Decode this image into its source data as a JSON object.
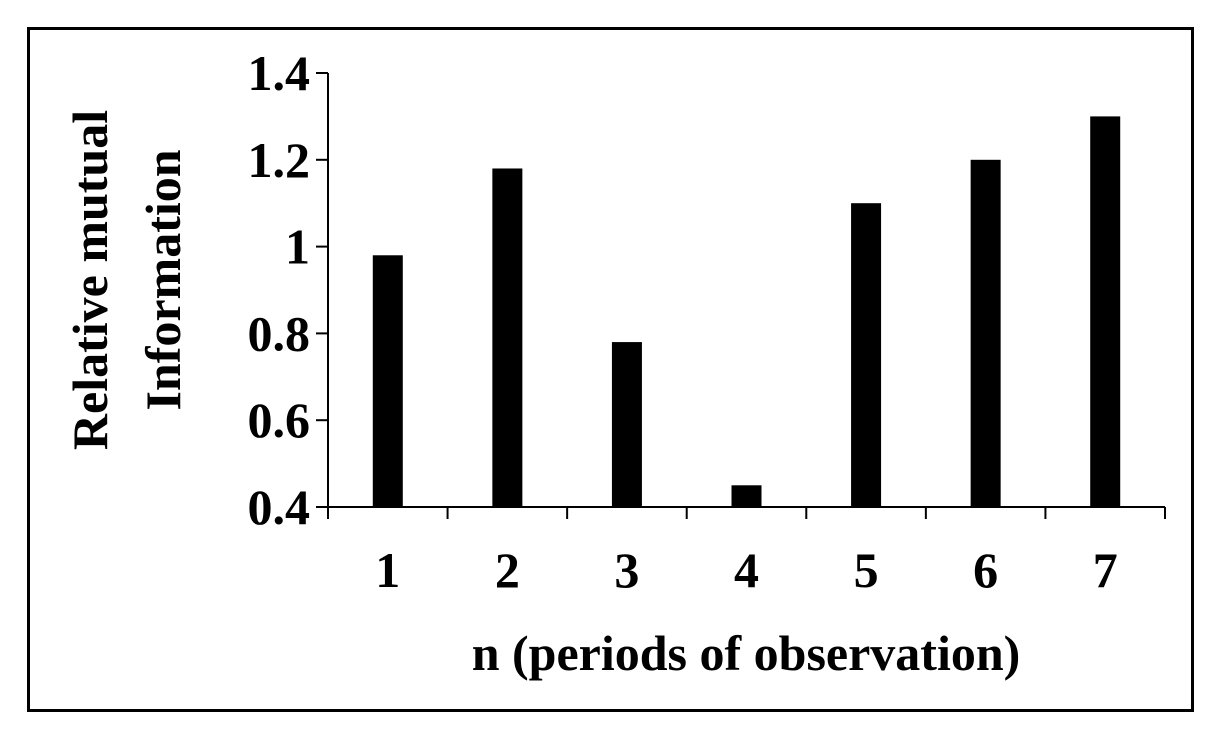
{
  "chart_data": {
    "type": "bar",
    "categories": [
      "1",
      "2",
      "3",
      "4",
      "5",
      "6",
      "7"
    ],
    "values": [
      0.98,
      1.18,
      0.78,
      0.45,
      1.1,
      1.2,
      1.3
    ],
    "xlabel": "n (periods of observation)",
    "ylabel_lines": [
      "Relative mutual",
      "Information"
    ],
    "ylim": [
      0.4,
      1.4
    ],
    "yticks": [
      "0.4",
      "0.6",
      "0.8",
      "1",
      "1.2",
      "1.4"
    ],
    "grid": false,
    "legend": "none",
    "bar_color": "#000000"
  }
}
